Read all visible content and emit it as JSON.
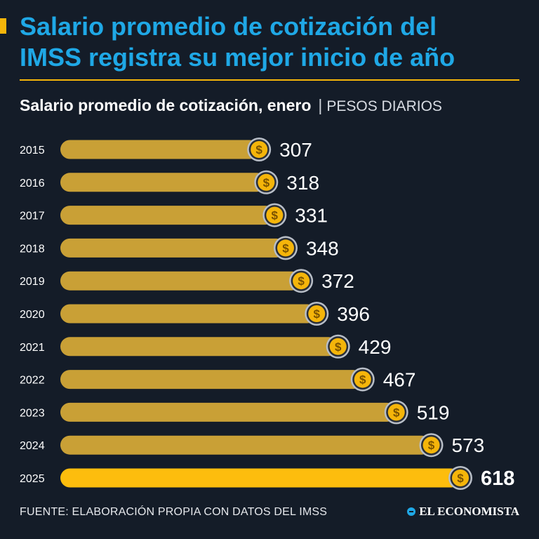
{
  "header": {
    "title_line1": "Salario promedio de cotización del",
    "title_line2": "IMSS registra su mejor inicio de año",
    "subtitle": "Salario promedio de cotización, enero",
    "separator": "|",
    "units": "PESOS DIARIOS"
  },
  "footer": {
    "source": "FUENTE: ELABORACIÓN PROPIA CON DATOS DEL IMSS",
    "brand": "EL ECONOMISTA"
  },
  "colors": {
    "background": "#141c28",
    "bar": "#c9a036",
    "bar_highlight": "#fdbd0d",
    "title": "#1fa8e6",
    "coin": "#f5b50a"
  },
  "chart_data": {
    "type": "bar",
    "orientation": "horizontal",
    "title": "Salario promedio de cotización, enero",
    "unit_label": "PESOS DIARIOS",
    "categories": [
      "2015",
      "2016",
      "2017",
      "2018",
      "2019",
      "2020",
      "2021",
      "2022",
      "2023",
      "2024",
      "2025"
    ],
    "values": [
      307,
      318,
      331,
      348,
      372,
      396,
      429,
      467,
      519,
      573,
      618
    ],
    "highlight_category": "2025",
    "coin_symbol": "$",
    "xlim": [
      0,
      618
    ],
    "grid": false,
    "legend": "none"
  }
}
